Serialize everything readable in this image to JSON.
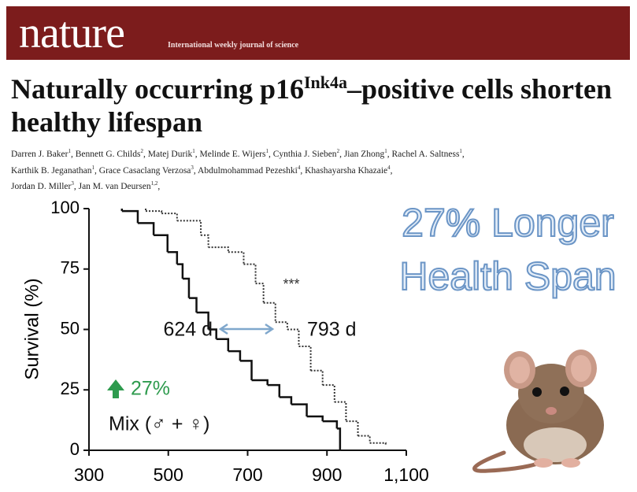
{
  "header": {
    "logo": "nature",
    "tagline": "International weekly journal of science"
  },
  "article": {
    "title_start": "Naturally occurring p16",
    "title_sup": "Ink4a",
    "title_end": "–positive cells shorten healthy lifespan",
    "authors": [
      {
        "name": "Darren J. Baker",
        "aff": "1"
      },
      {
        "name": "Bennett G. Childs",
        "aff": "2"
      },
      {
        "name": "Matej Durik",
        "aff": "1"
      },
      {
        "name": "Melinde E. Wijers",
        "aff": "1"
      },
      {
        "name": "Cynthia J. Sieben",
        "aff": "2"
      },
      {
        "name": "Jian Zhong",
        "aff": "1"
      },
      {
        "name": "Rachel A. Saltness",
        "aff": "1"
      },
      {
        "name": "Karthik B. Jeganathan",
        "aff": "1"
      },
      {
        "name": "Grace Casaclang Verzosa",
        "aff": "3"
      },
      {
        "name": "Abdulmohammad Pezeshki",
        "aff": "4"
      },
      {
        "name": "Khashayarsha Khazaie",
        "aff": "4"
      },
      {
        "name": "Jordan D. Miller",
        "aff": "3"
      },
      {
        "name": "Jan M. van Deursen",
        "aff": "1,2"
      }
    ]
  },
  "headline": [
    "27% Longer",
    "Health Span"
  ],
  "chart_data": {
    "type": "step",
    "y_label": "Survival (%)",
    "xlim": [
      300,
      1100
    ],
    "xticks": [
      300,
      500,
      700,
      900,
      {
        "value": 1100,
        "label": "1,100"
      }
    ],
    "ylim": [
      0,
      100
    ],
    "yticks": [
      0,
      25,
      50,
      75,
      100
    ],
    "annotations": [
      "624 d",
      "793 d",
      "***",
      "27%",
      "Mix (♂ + ♀)"
    ],
    "series": [
      {
        "color": "#111111",
        "dashed": false,
        "x": [
          383,
          423,
          463,
          498,
          522,
          536,
          552,
          571,
          601,
          621,
          651,
          681,
          710,
          750,
          780,
          810,
          849,
          889,
          925,
          933
        ],
        "values": [
          99,
          94,
          89,
          82,
          77,
          71,
          63,
          57,
          50,
          46,
          41,
          37,
          29,
          27,
          22,
          19,
          14,
          12,
          9,
          0
        ]
      },
      {
        "color": "#333333",
        "dashed": true,
        "x": [
          443,
          483,
          522,
          582,
          601,
          651,
          690,
          720,
          740,
          770,
          800,
          829,
          859,
          889,
          919,
          948,
          978,
          1008,
          1048
        ],
        "values": [
          99,
          98,
          95,
          89,
          84,
          82,
          77,
          69,
          61,
          53,
          50,
          43,
          33,
          27,
          20,
          12,
          6,
          3,
          2
        ]
      }
    ]
  }
}
